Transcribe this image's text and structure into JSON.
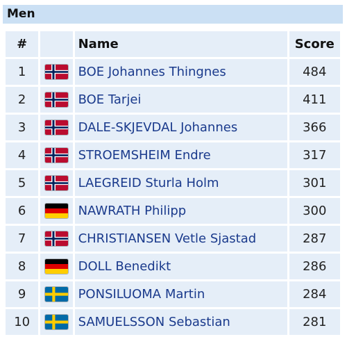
{
  "section": {
    "title": "Men"
  },
  "table": {
    "headers": {
      "rank": "#",
      "name": "Name",
      "score": "Score"
    },
    "rows": [
      {
        "rank": "1",
        "flag": "norway-flag-icon",
        "name": "BOE Johannes Thingnes",
        "score": "484"
      },
      {
        "rank": "2",
        "flag": "norway-flag-icon",
        "name": "BOE Tarjei",
        "score": "411"
      },
      {
        "rank": "3",
        "flag": "norway-flag-icon",
        "name": "DALE-SKJEVDAL Johannes",
        "score": "366"
      },
      {
        "rank": "4",
        "flag": "norway-flag-icon",
        "name": "STROEMSHEIM Endre",
        "score": "317"
      },
      {
        "rank": "5",
        "flag": "norway-flag-icon",
        "name": "LAEGREID Sturla Holm",
        "score": "301"
      },
      {
        "rank": "6",
        "flag": "germany-flag-icon",
        "name": "NAWRATH Philipp",
        "score": "300"
      },
      {
        "rank": "7",
        "flag": "norway-flag-icon",
        "name": "CHRISTIANSEN Vetle Sjastad",
        "score": "287"
      },
      {
        "rank": "8",
        "flag": "germany-flag-icon",
        "name": "DOLL Benedikt",
        "score": "286"
      },
      {
        "rank": "9",
        "flag": "sweden-flag-icon",
        "name": "PONSILUOMA Martin",
        "score": "284"
      },
      {
        "rank": "10",
        "flag": "sweden-flag-icon",
        "name": "SAMUELSSON Sebastian",
        "score": "281"
      }
    ]
  },
  "colors": {
    "header_bg": "#cbe0f4",
    "cell_bg": "#e5eef8",
    "link": "#1a3a8c"
  }
}
